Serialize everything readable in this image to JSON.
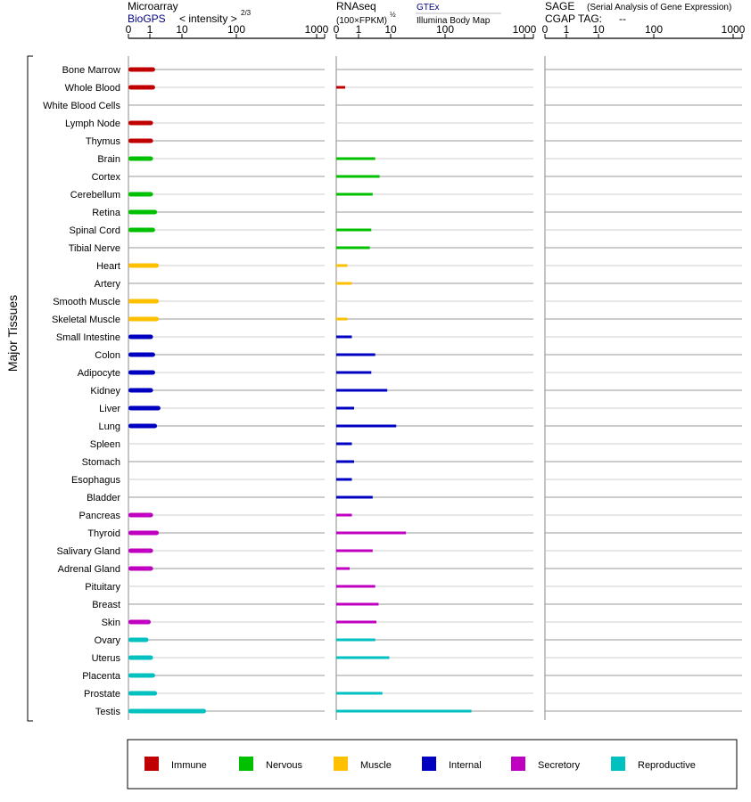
{
  "panels": {
    "microarray": {
      "title": "Microarray",
      "source": "BioGPS",
      "unit_prefix": "< intensity >",
      "unit_exponent": "2/3",
      "ticks": [
        "0",
        "1",
        "10",
        "100",
        "1000"
      ]
    },
    "rnaseq": {
      "title": "RNAseq",
      "unit_prefix": "(100×FPKM)",
      "unit_exponent": "½",
      "source_1": "GTEx",
      "source_2": "Illumina Body Map",
      "ticks": [
        "0",
        "1",
        "10",
        "100",
        "1000"
      ]
    },
    "sage": {
      "title": "SAGE",
      "subtitle": "(Serial Analysis of Gene Expression)",
      "tag_label": "CGAP  TAG:",
      "tag_value": "--",
      "ticks": [
        "0",
        "1",
        "10",
        "100",
        "1000"
      ]
    }
  },
  "ylabel": "Major Tissues",
  "legend": [
    {
      "key": "immune",
      "label": "Immune",
      "color": "#c00000"
    },
    {
      "key": "nervous",
      "label": "Nervous",
      "color": "#00c000"
    },
    {
      "key": "muscle",
      "label": "Muscle",
      "color": "#ffc000"
    },
    {
      "key": "internal",
      "label": "Internal",
      "color": "#0000c0"
    },
    {
      "key": "secretory",
      "label": "Secretory",
      "color": "#c000c0"
    },
    {
      "key": "reproductive",
      "label": "Reproductive",
      "color": "#00c0c0"
    }
  ],
  "chart_data": {
    "type": "bar",
    "orientation": "horizontal",
    "x_scale": "log-like (0, 1, 10, 100, 1000)",
    "xlim": [
      0,
      1000
    ],
    "grid": true,
    "legend_position": "bottom",
    "categories": [
      "Bone Marrow",
      "Whole Blood",
      "White Blood Cells",
      "Lymph Node",
      "Thymus",
      "Brain",
      "Cortex",
      "Cerebellum",
      "Retina",
      "Spinal Cord",
      "Tibial Nerve",
      "Heart",
      "Artery",
      "Smooth Muscle",
      "Skeletal Muscle",
      "Small Intestine",
      "Colon",
      "Adipocyte",
      "Kidney",
      "Liver",
      "Lung",
      "Spleen",
      "Stomach",
      "Esophagus",
      "Bladder",
      "Pancreas",
      "Thyroid",
      "Salivary Gland",
      "Adrenal Gland",
      "Pituitary",
      "Breast",
      "Skin",
      "Ovary",
      "Uterus",
      "Placenta",
      "Prostate",
      "Testis"
    ],
    "groups": [
      "immune",
      "immune",
      "immune",
      "immune",
      "immune",
      "nervous",
      "nervous",
      "nervous",
      "nervous",
      "nervous",
      "nervous",
      "muscle",
      "muscle",
      "muscle",
      "muscle",
      "internal",
      "internal",
      "internal",
      "internal",
      "internal",
      "internal",
      "internal",
      "internal",
      "internal",
      "internal",
      "secretory",
      "secretory",
      "secretory",
      "secretory",
      "secretory",
      "secretory",
      "secretory",
      "reproductive",
      "reproductive",
      "reproductive",
      "reproductive",
      "reproductive"
    ],
    "series": [
      {
        "name": "Microarray",
        "values": [
          1.2,
          1.2,
          null,
          1.1,
          1.1,
          1.1,
          null,
          1.1,
          1.3,
          1.2,
          null,
          1.4,
          null,
          1.4,
          1.4,
          1.1,
          1.2,
          1.2,
          1.1,
          1.5,
          1.3,
          null,
          null,
          null,
          null,
          1.1,
          1.4,
          1.1,
          1.1,
          null,
          null,
          1.0,
          0.9,
          1.1,
          1.2,
          1.3,
          10
        ]
      },
      {
        "name": "RNAseq",
        "values": [
          null,
          0.4,
          null,
          null,
          null,
          2.0,
          2.4,
          1.8,
          null,
          1.7,
          1.6,
          0.5,
          0.7,
          null,
          0.5,
          0.7,
          2.0,
          1.7,
          3.3,
          0.8,
          4.8,
          0.7,
          0.8,
          0.7,
          1.8,
          0.7,
          7.2,
          1.8,
          0.6,
          2.0,
          2.3,
          2.1,
          2.0,
          3.6,
          null,
          2.7,
          110
        ]
      },
      {
        "name": "SAGE",
        "values": [
          null,
          null,
          null,
          null,
          null,
          null,
          null,
          null,
          null,
          null,
          null,
          null,
          null,
          null,
          null,
          null,
          null,
          null,
          null,
          null,
          null,
          null,
          null,
          null,
          null,
          null,
          null,
          null,
          null,
          null,
          null,
          null,
          null,
          null,
          null,
          null,
          null
        ]
      }
    ]
  }
}
